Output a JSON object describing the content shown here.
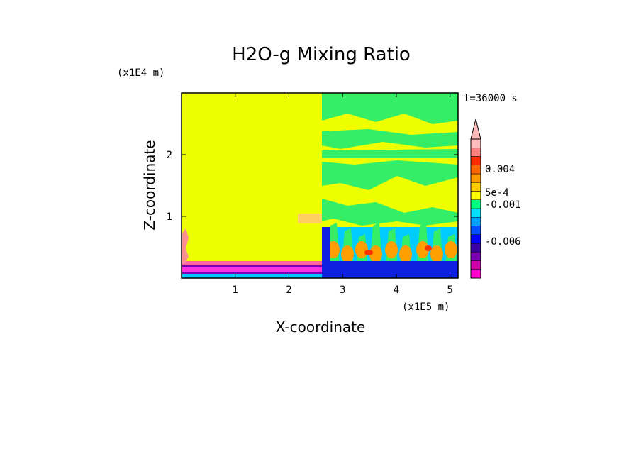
{
  "chart_data": {
    "type": "heatmap",
    "title": "H2O-g Mixing Ratio",
    "xlabel": "X-coordinate",
    "ylabel": "Z-coordinate",
    "x_unit": "(x1E5 m)",
    "y_unit": "(x1E4 m)",
    "time_label": "t=36000 s",
    "xlim": [
      0,
      5.15
    ],
    "ylim": [
      0,
      3.0
    ],
    "x_ticks": [
      1,
      2,
      3,
      4,
      5
    ],
    "x_tick_labels": [
      "1",
      "2",
      "3",
      "4",
      "5"
    ],
    "y_ticks": [
      1,
      2
    ],
    "y_tick_labels": [
      "1",
      "2"
    ],
    "colorbar": {
      "colors": [
        "#ff00cc",
        "#cc00aa",
        "#7a00b4",
        "#3a00a8",
        "#0000ff",
        "#0050ff",
        "#00a0ff",
        "#00e0ff",
        "#00ff80",
        "#ffff00",
        "#ffcc00",
        "#ff9900",
        "#ff6600",
        "#ff2a00",
        "#ff8080",
        "#ffbcbc"
      ],
      "labels": [
        "0.004",
        "5e-4",
        "-0.001",
        "-0.006"
      ],
      "extend": "max"
    },
    "field_colors": {
      "background": "#eeff00",
      "green": "#33ee66",
      "orange": "#ffa000",
      "blue": "#1020e0",
      "cyan": "#00ccff",
      "purple": "#7a00b4",
      "magenta": "#ff33dd",
      "red": "#ff3300"
    }
  }
}
